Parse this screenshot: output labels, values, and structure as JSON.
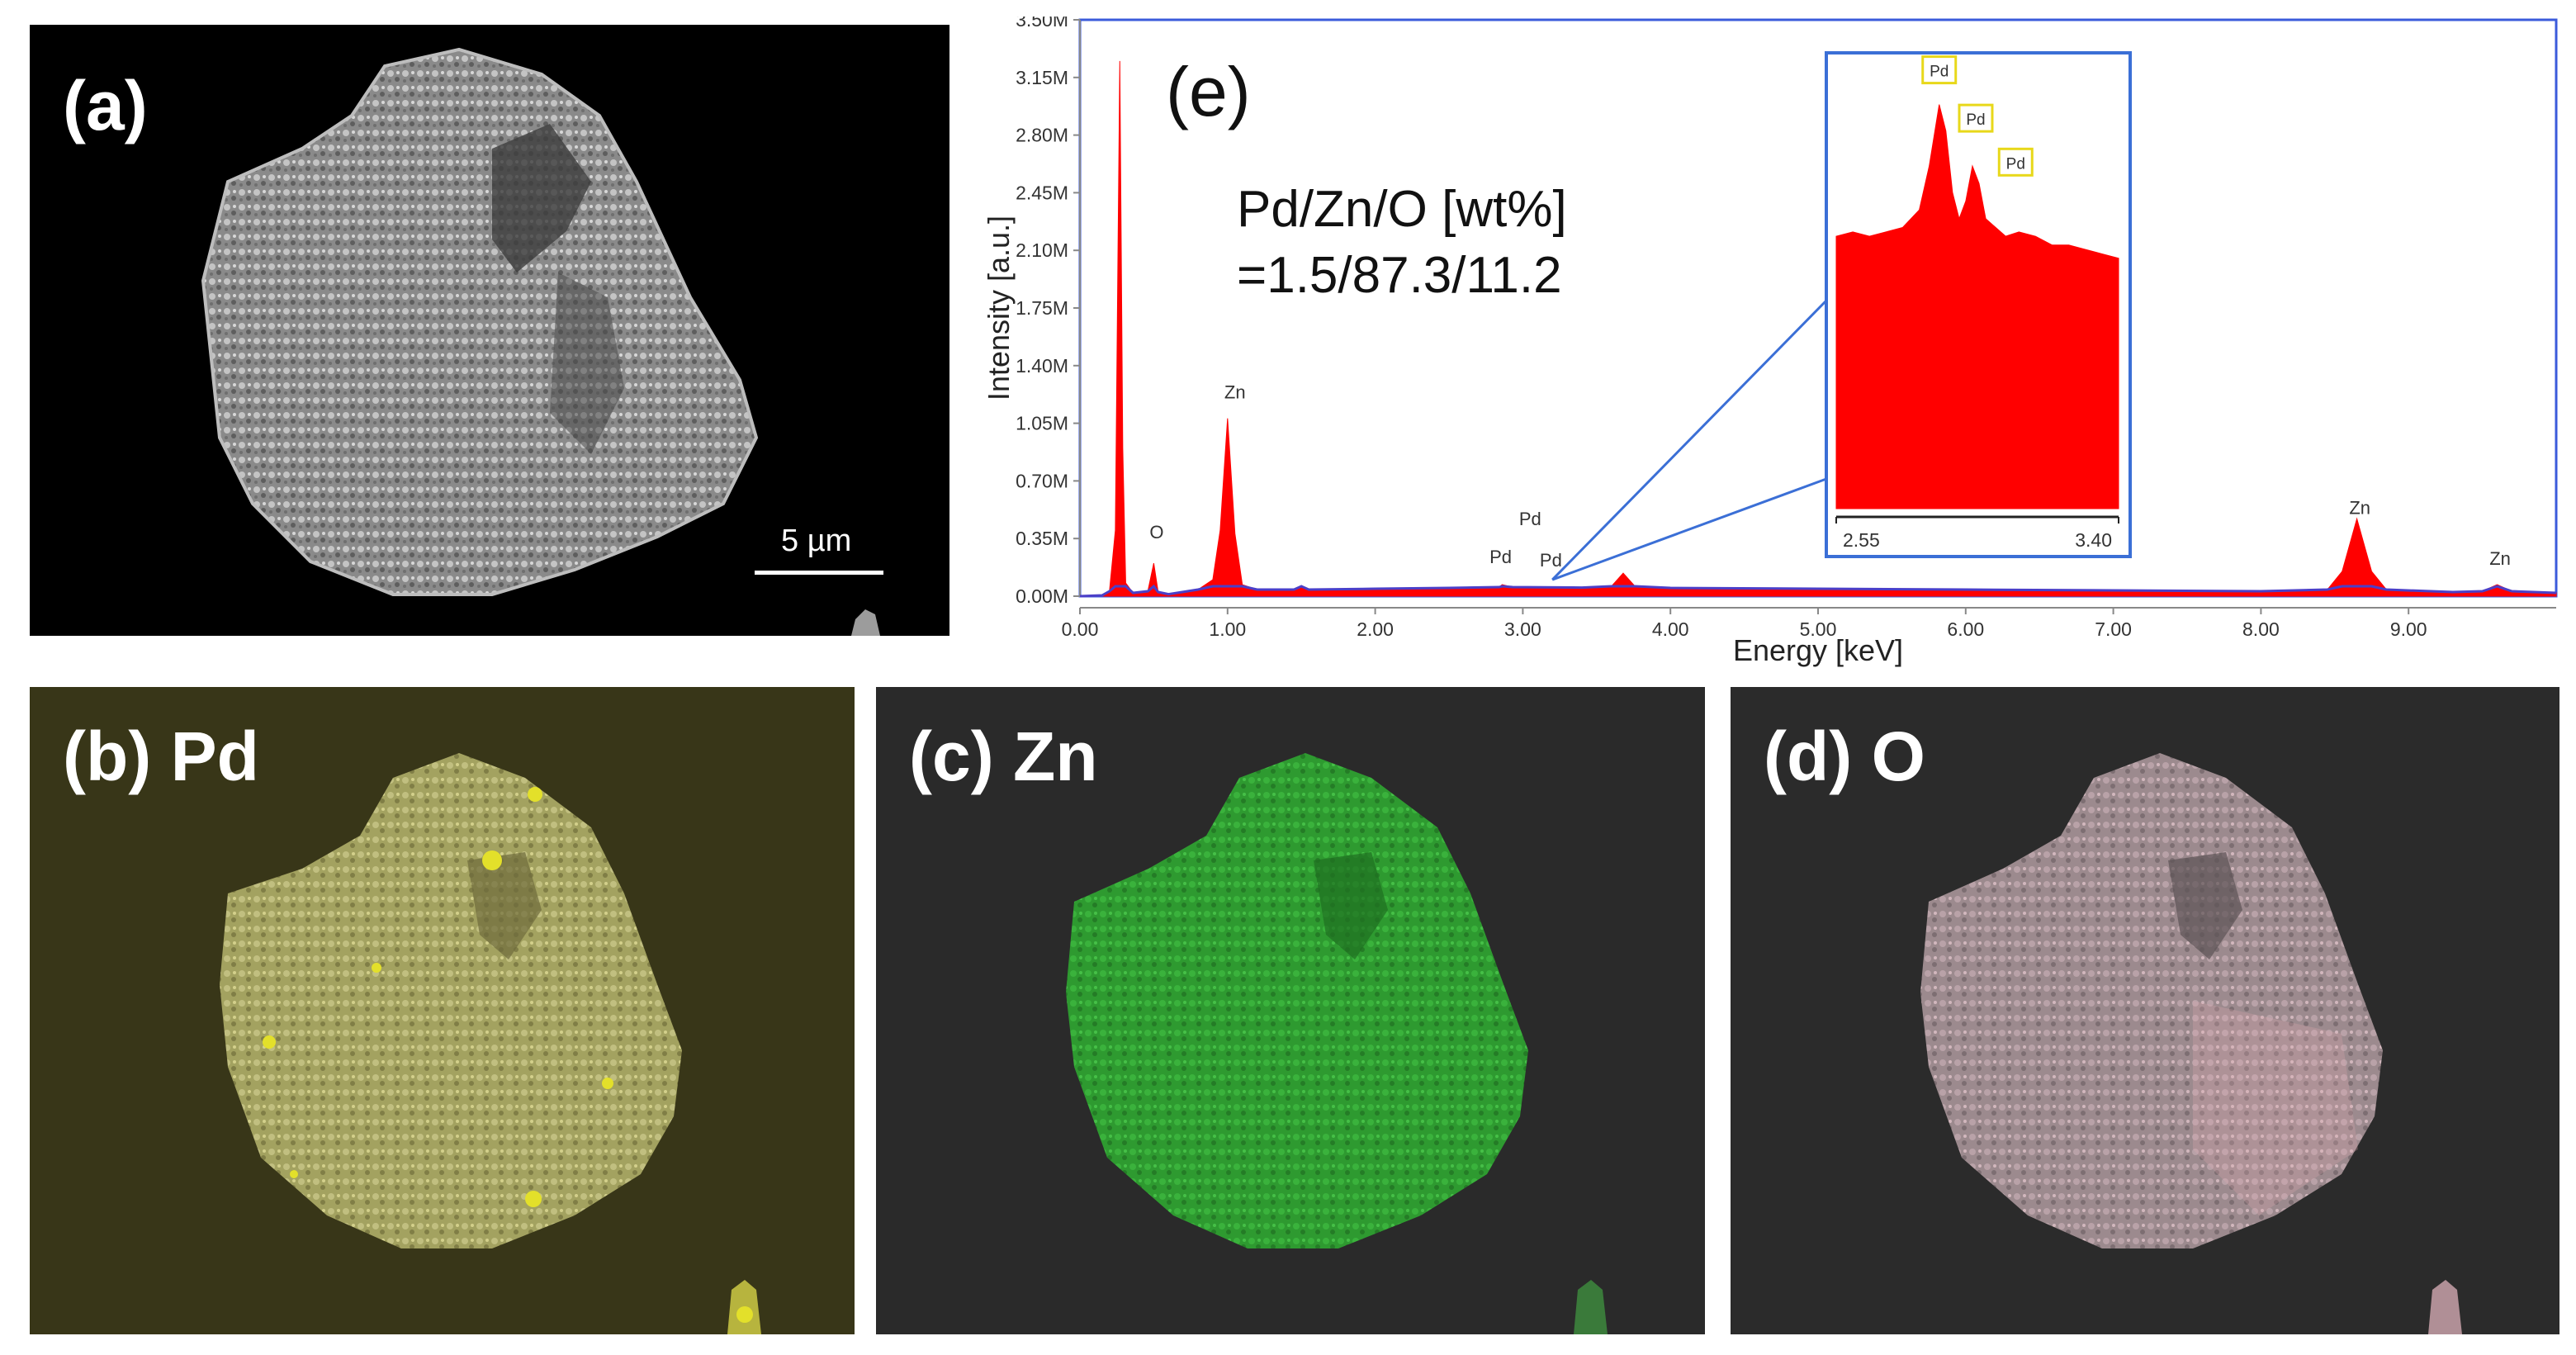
{
  "panels": {
    "a": {
      "label": "(a)",
      "scale_bar": "5 µm"
    },
    "b": {
      "label": "(b) Pd",
      "overlay_color": "#e3e02a"
    },
    "c": {
      "label": "(c) Zn",
      "overlay_color": "#27b22b"
    },
    "d": {
      "label": "(d) O",
      "overlay_color": "#e2aab4"
    },
    "e": {
      "label": "(e)",
      "composition_line1": "Pd/Zn/O [wt%]",
      "composition_line2": "=1.5/87.3/11.2"
    }
  },
  "chart_data": {
    "type": "area",
    "title": "",
    "xlabel": "Energy [keV]",
    "ylabel": "Intensity [a.u.]",
    "xlim": [
      0,
      10
    ],
    "ylim": [
      0,
      3500000
    ],
    "x_ticks": [
      "0.00",
      "1.00",
      "2.00",
      "3.00",
      "4.00",
      "5.00",
      "6.00",
      "7.00",
      "8.00",
      "9.00"
    ],
    "y_ticks": [
      "0.00M",
      "0.35M",
      "0.70M",
      "1.05M",
      "1.40M",
      "1.75M",
      "2.10M",
      "2.45M",
      "2.80M",
      "3.15M",
      "3.50M"
    ],
    "series_color": "#ff0000",
    "series": [
      {
        "values": [
          [
            0.0,
            0
          ],
          [
            0.15,
            5000
          ],
          [
            0.2,
            30000
          ],
          [
            0.24,
            400000
          ],
          [
            0.27,
            3250000
          ],
          [
            0.29,
            900000
          ],
          [
            0.31,
            80000
          ],
          [
            0.36,
            20000
          ],
          [
            0.46,
            30000
          ],
          [
            0.5,
            200000
          ],
          [
            0.53,
            25000
          ],
          [
            0.6,
            12000
          ],
          [
            0.8,
            40000
          ],
          [
            0.9,
            100000
          ],
          [
            0.95,
            400000
          ],
          [
            1.0,
            1080000
          ],
          [
            1.05,
            380000
          ],
          [
            1.1,
            70000
          ],
          [
            1.2,
            40000
          ],
          [
            1.45,
            40000
          ],
          [
            1.5,
            60000
          ],
          [
            1.55,
            40000
          ],
          [
            2.0,
            45000
          ],
          [
            2.5,
            50000
          ],
          [
            2.84,
            55000
          ],
          [
            2.86,
            70000
          ],
          [
            2.93,
            55000
          ],
          [
            3.4,
            52000
          ],
          [
            3.6,
            60000
          ],
          [
            3.68,
            140000
          ],
          [
            3.76,
            60000
          ],
          [
            4.0,
            50000
          ],
          [
            5.0,
            45000
          ],
          [
            6.0,
            40000
          ],
          [
            7.0,
            35000
          ],
          [
            8.0,
            30000
          ],
          [
            8.45,
            40000
          ],
          [
            8.55,
            150000
          ],
          [
            8.65,
            470000
          ],
          [
            8.75,
            150000
          ],
          [
            8.85,
            40000
          ],
          [
            9.3,
            25000
          ],
          [
            9.5,
            30000
          ],
          [
            9.6,
            70000
          ],
          [
            9.7,
            30000
          ],
          [
            10.0,
            20000
          ]
        ]
      }
    ],
    "peak_labels": [
      {
        "text": "O",
        "x": 0.52,
        "y": 350000
      },
      {
        "text": "Zn",
        "x": 1.05,
        "y": 1200000
      },
      {
        "text": "Pd",
        "x": 2.85,
        "y": 200000
      },
      {
        "text": "Pd",
        "x": 3.05,
        "y": 430000
      },
      {
        "text": "Pd",
        "x": 3.19,
        "y": 180000
      },
      {
        "text": "Zn",
        "x": 8.67,
        "y": 500000
      },
      {
        "text": "Zn",
        "x": 9.62,
        "y": 190000
      }
    ],
    "inset": {
      "xlim": [
        2.55,
        3.4
      ],
      "x_ticks": [
        "2.55",
        "3.40"
      ],
      "ylim": [
        0,
        1
      ],
      "values": [
        [
          2.55,
          0.62
        ],
        [
          2.6,
          0.63
        ],
        [
          2.65,
          0.62
        ],
        [
          2.7,
          0.63
        ],
        [
          2.75,
          0.64
        ],
        [
          2.8,
          0.68
        ],
        [
          2.83,
          0.78
        ],
        [
          2.86,
          0.92
        ],
        [
          2.88,
          0.86
        ],
        [
          2.9,
          0.72
        ],
        [
          2.92,
          0.66
        ],
        [
          2.94,
          0.7
        ],
        [
          2.96,
          0.78
        ],
        [
          2.98,
          0.74
        ],
        [
          3.0,
          0.66
        ],
        [
          3.03,
          0.64
        ],
        [
          3.06,
          0.62
        ],
        [
          3.1,
          0.63
        ],
        [
          3.15,
          0.62
        ],
        [
          3.2,
          0.6
        ],
        [
          3.25,
          0.6
        ],
        [
          3.3,
          0.59
        ],
        [
          3.35,
          0.58
        ],
        [
          3.4,
          0.57
        ]
      ],
      "peak_labels": [
        {
          "text": "Pd",
          "x": 2.86,
          "y": 0.95
        },
        {
          "text": "Pd",
          "x": 2.97,
          "y": 0.84
        },
        {
          "text": "Pd",
          "x": 3.09,
          "y": 0.74
        }
      ],
      "zoom_source_x": 3.2
    }
  }
}
